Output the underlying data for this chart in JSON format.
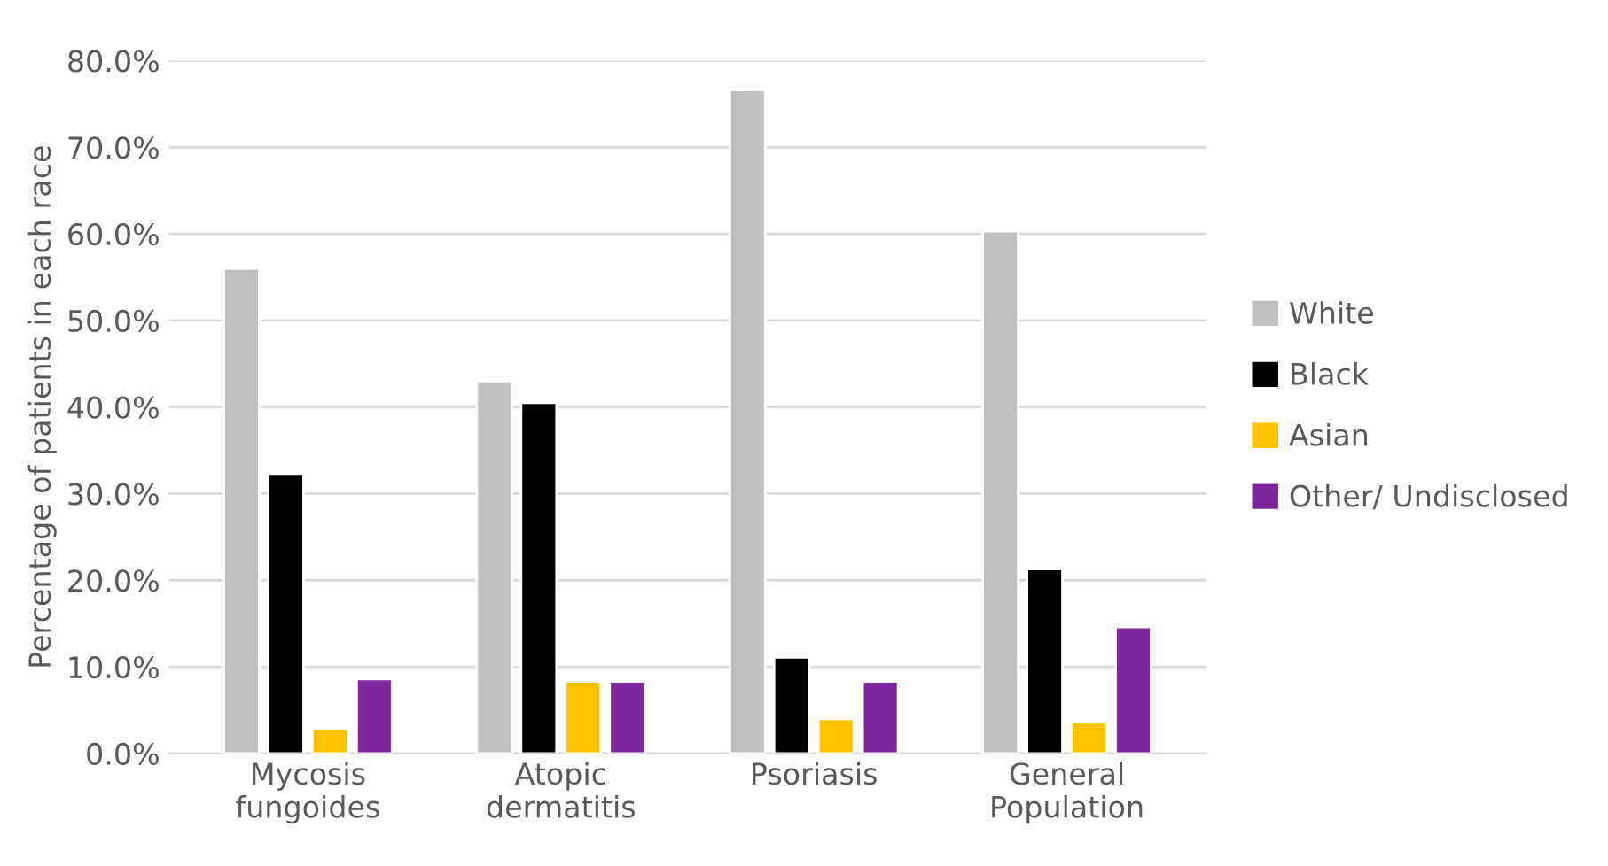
{
  "chart_data": {
    "type": "bar",
    "ylabel": "Percentage of patients in each race",
    "categories": [
      "Mycosis\nfungoides",
      "Atopic\ndermatitis",
      "Psoriasis",
      "General\nPopulation"
    ],
    "series": [
      {
        "name": "White",
        "color": "#bfbfbf",
        "values": [
          56.0,
          43.0,
          76.6,
          60.3
        ]
      },
      {
        "name": "Black",
        "color": "#000000",
        "values": [
          32.3,
          40.5,
          11.1,
          21.3
        ]
      },
      {
        "name": "Asian",
        "color": "#ffc000",
        "values": [
          2.9,
          8.3,
          4.0,
          3.6
        ]
      },
      {
        "name": "Other/ Undisclosed",
        "color": "#7f279f",
        "values": [
          8.6,
          8.3,
          8.3,
          14.6
        ]
      }
    ],
    "ylim": [
      0,
      80
    ],
    "yticks": [
      {
        "value": 0,
        "label": "0.0%"
      },
      {
        "value": 10,
        "label": "10.0%"
      },
      {
        "value": 20,
        "label": "20.0%"
      },
      {
        "value": 30,
        "label": "30.0%"
      },
      {
        "value": 40,
        "label": "40.0%"
      },
      {
        "value": 50,
        "label": "50.0%"
      },
      {
        "value": 60,
        "label": "60.0%"
      },
      {
        "value": 70,
        "label": "70.0%"
      },
      {
        "value": 80,
        "label": "80.0%"
      }
    ],
    "grid": "y",
    "legend": "right"
  }
}
